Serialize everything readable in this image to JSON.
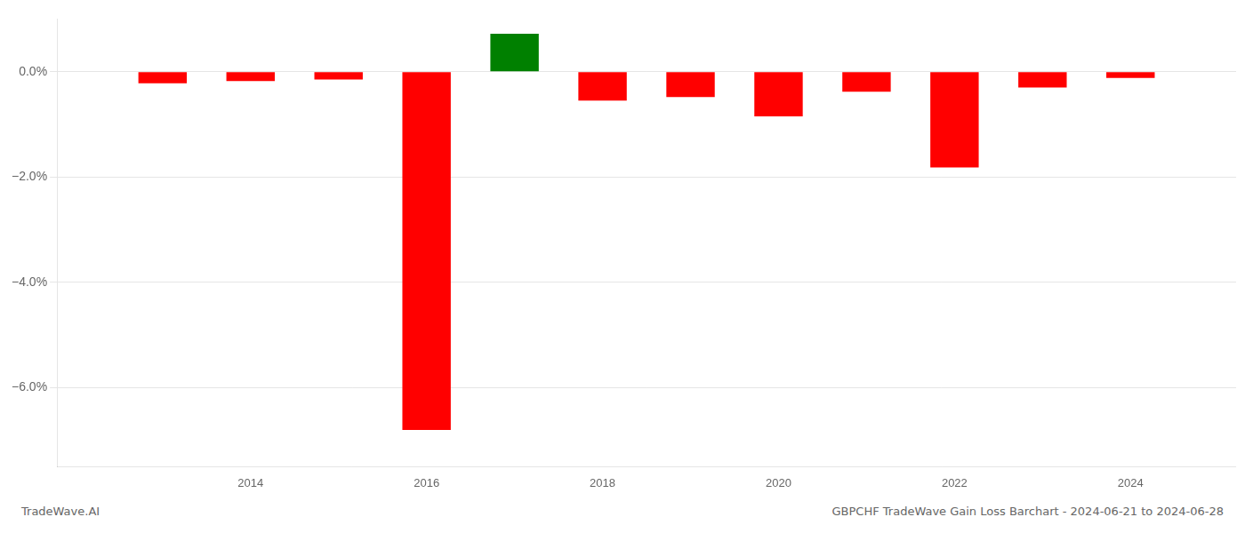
{
  "chart_data": {
    "type": "bar",
    "title": "GBPCHF TradeWave Gain Loss Barchart - 2024-06-21 to 2024-06-28",
    "annotations": [
      "TradeWave.AI"
    ],
    "x": [
      2013,
      2014,
      2015,
      2016,
      2017,
      2018,
      2019,
      2020,
      2021,
      2022,
      2023,
      2024
    ],
    "values": [
      -0.22,
      -0.18,
      -0.15,
      -6.8,
      0.72,
      -0.55,
      -0.48,
      -0.85,
      -0.38,
      -1.82,
      -0.3,
      -0.12
    ],
    "colors": [
      "#ff0000",
      "#ff0000",
      "#ff0000",
      "#ff0000",
      "#008000",
      "#ff0000",
      "#ff0000",
      "#ff0000",
      "#ff0000",
      "#ff0000",
      "#ff0000",
      "#ff0000"
    ],
    "xlim": [
      2011.8,
      2025.2
    ],
    "xticks": [
      2014,
      2016,
      2018,
      2020,
      2022,
      2024
    ],
    "ylim": [
      -7.5,
      1.0
    ],
    "yticks": [
      {
        "value": 0.0,
        "label": "0.0%"
      },
      {
        "value": -2.0,
        "label": "−2.0%"
      },
      {
        "value": -4.0,
        "label": "−4.0%"
      },
      {
        "value": -6.0,
        "label": "−6.0%"
      }
    ],
    "grid": true
  }
}
